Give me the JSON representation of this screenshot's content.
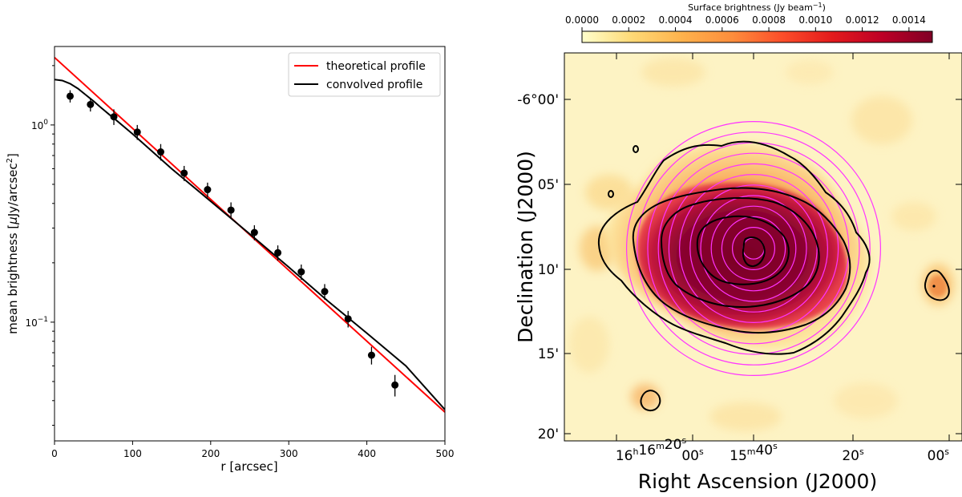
{
  "chart_data": [
    {
      "type": "scatter",
      "xlabel": "r [arcsec]",
      "ylabel": "mean brightness [μJy/arcsec²]",
      "ylabel_main": "mean brightness [",
      "ylabel_mu": "μ",
      "ylabel_unit": "Jy/arcsec",
      "ylabel_sup": "2",
      "ylabel_close": "]",
      "yscale": "log",
      "xlim": [
        0,
        500
      ],
      "ylim": [
        0.025,
        2.5
      ],
      "xticks": [
        0,
        100,
        200,
        300,
        400,
        500
      ],
      "yticks": [
        {
          "value": 1.0,
          "base": "10",
          "exp": "0"
        },
        {
          "value": 0.1,
          "base": "10",
          "exp": "−1"
        }
      ],
      "legend": {
        "position": "top-right",
        "entries": [
          {
            "label": "theoretical profile",
            "color": "#ff0000"
          },
          {
            "label": "convolved profile",
            "color": "#000000"
          }
        ]
      },
      "series": [
        {
          "name": "theoretical profile",
          "kind": "line",
          "color": "#ff0000",
          "x": [
            0,
            500
          ],
          "y": [
            2.2,
            0.035
          ]
        },
        {
          "name": "convolved profile",
          "kind": "line",
          "color": "#000000",
          "x": [
            0,
            10,
            20,
            30,
            40,
            50,
            60,
            70,
            80,
            100,
            150,
            200,
            250,
            300,
            350,
            400,
            450,
            500
          ],
          "y": [
            1.7,
            1.68,
            1.62,
            1.53,
            1.42,
            1.32,
            1.22,
            1.13,
            1.05,
            0.9,
            0.6,
            0.41,
            0.28,
            0.19,
            0.128,
            0.088,
            0.06,
            0.036
          ]
        },
        {
          "name": "data",
          "kind": "errorbar",
          "color": "#000000",
          "points": [
            {
              "x": 20,
              "y": 1.4,
              "err": 0.1
            },
            {
              "x": 46,
              "y": 1.27,
              "err": 0.1
            },
            {
              "x": 76,
              "y": 1.1,
              "err": 0.1
            },
            {
              "x": 106,
              "y": 0.92,
              "err": 0.08
            },
            {
              "x": 136,
              "y": 0.73,
              "err": 0.07
            },
            {
              "x": 166,
              "y": 0.57,
              "err": 0.05
            },
            {
              "x": 196,
              "y": 0.47,
              "err": 0.04
            },
            {
              "x": 226,
              "y": 0.37,
              "err": 0.035
            },
            {
              "x": 256,
              "y": 0.285,
              "err": 0.025
            },
            {
              "x": 286,
              "y": 0.225,
              "err": 0.02
            },
            {
              "x": 316,
              "y": 0.18,
              "err": 0.016
            },
            {
              "x": 346,
              "y": 0.143,
              "err": 0.013
            },
            {
              "x": 376,
              "y": 0.104,
              "err": 0.01
            },
            {
              "x": 406,
              "y": 0.068,
              "err": 0.007
            },
            {
              "x": 436,
              "y": 0.048,
              "err": 0.006
            }
          ]
        }
      ]
    },
    {
      "type": "heatmap",
      "xlabel": "Right Ascension (J2000)",
      "ylabel": "Declination (J2000)",
      "colorbar": {
        "label_main": "Surface brightness (Jy beam",
        "label_sup": "−1",
        "label_close": ")",
        "min": 0.0,
        "max": 0.0015,
        "ticks": [
          "0.0000",
          "0.0002",
          "0.0004",
          "0.0006",
          "0.0008",
          "0.0010",
          "0.0012",
          "0.0014"
        ],
        "tick_values": [
          0.0,
          0.0002,
          0.0004,
          0.0006,
          0.0008,
          0.001,
          0.0012,
          0.0014
        ],
        "colors": [
          "#ffffcc",
          "#fed976",
          "#feb24c",
          "#fd8d3c",
          "#fc4e2a",
          "#e31a1c",
          "#bd0026",
          "#800026"
        ]
      },
      "xticks": [
        {
          "h": "16",
          "hs": "h",
          "m": "16",
          "ms": "m",
          "s": "20",
          "ss": "s"
        },
        {
          "s": "00",
          "ss": "s"
        },
        {
          "m": "15",
          "ms": "m",
          "s": "40",
          "ss": "s"
        },
        {
          "s": "20",
          "ss": "s"
        },
        {
          "s": "00",
          "ss": "s"
        }
      ],
      "yticks": [
        "-6°00'",
        "05'",
        "10'",
        "15'",
        "20'"
      ],
      "contour_color": "#000000",
      "ring_color": "#ff33ff",
      "ring_count": 12
    }
  ]
}
